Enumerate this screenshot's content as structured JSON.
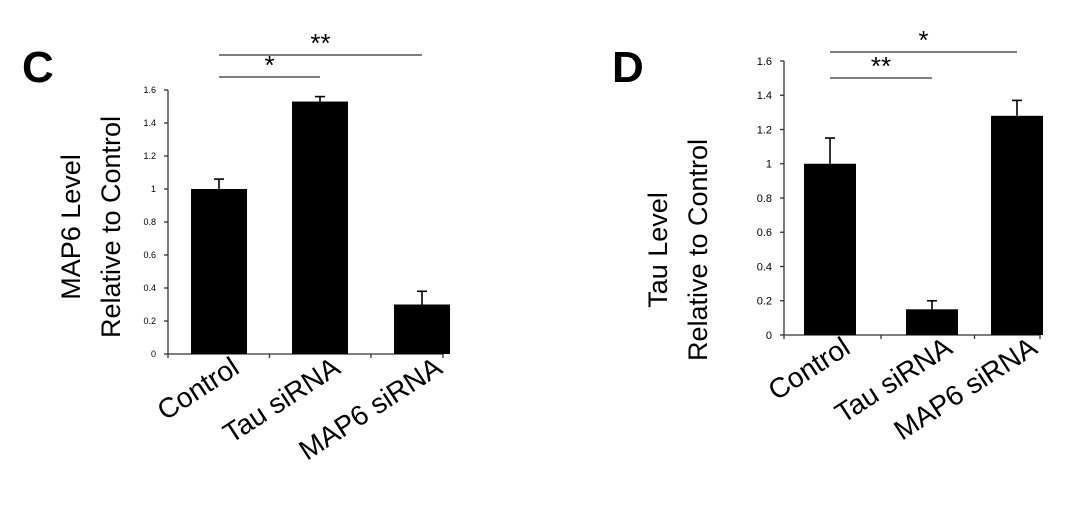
{
  "chart_data": [
    {
      "type": "bar",
      "panel_label": "C",
      "ylabel_line1": "MAP6 Level",
      "ylabel_line2": "Relative to Control",
      "categories": [
        "Control",
        "Tau siRNA",
        "MAP6 siRNA"
      ],
      "values": [
        1.0,
        1.53,
        0.3
      ],
      "errors": [
        0.06,
        0.03,
        0.08
      ],
      "ylim": [
        0,
        1.6
      ],
      "yticks": [
        "0",
        "0.2",
        "0.4",
        "0.6",
        "0.8",
        "1",
        "1.2",
        "1.4",
        "1.6"
      ],
      "bar_color": "#000000",
      "significance": [
        {
          "from": 0,
          "to": 1,
          "label": "*"
        },
        {
          "from": 0,
          "to": 2,
          "label": "**"
        }
      ]
    },
    {
      "type": "bar",
      "panel_label": "D",
      "ylabel_line1": "Tau Level",
      "ylabel_line2": "Relative to Control",
      "categories": [
        "Control",
        "Tau siRNA",
        "MAP6 siRNA"
      ],
      "values": [
        1.0,
        0.15,
        1.28
      ],
      "errors": [
        0.15,
        0.05,
        0.09
      ],
      "ylim": [
        0,
        1.6
      ],
      "yticks": [
        "0",
        "0.2",
        "0.4",
        "0.6",
        "0.8",
        "1",
        "1.2",
        "1.4",
        "1.6"
      ],
      "bar_color": "#000000",
      "significance": [
        {
          "from": 0,
          "to": 1,
          "label": "**"
        },
        {
          "from": 0,
          "to": 2,
          "label": "*"
        }
      ]
    }
  ]
}
